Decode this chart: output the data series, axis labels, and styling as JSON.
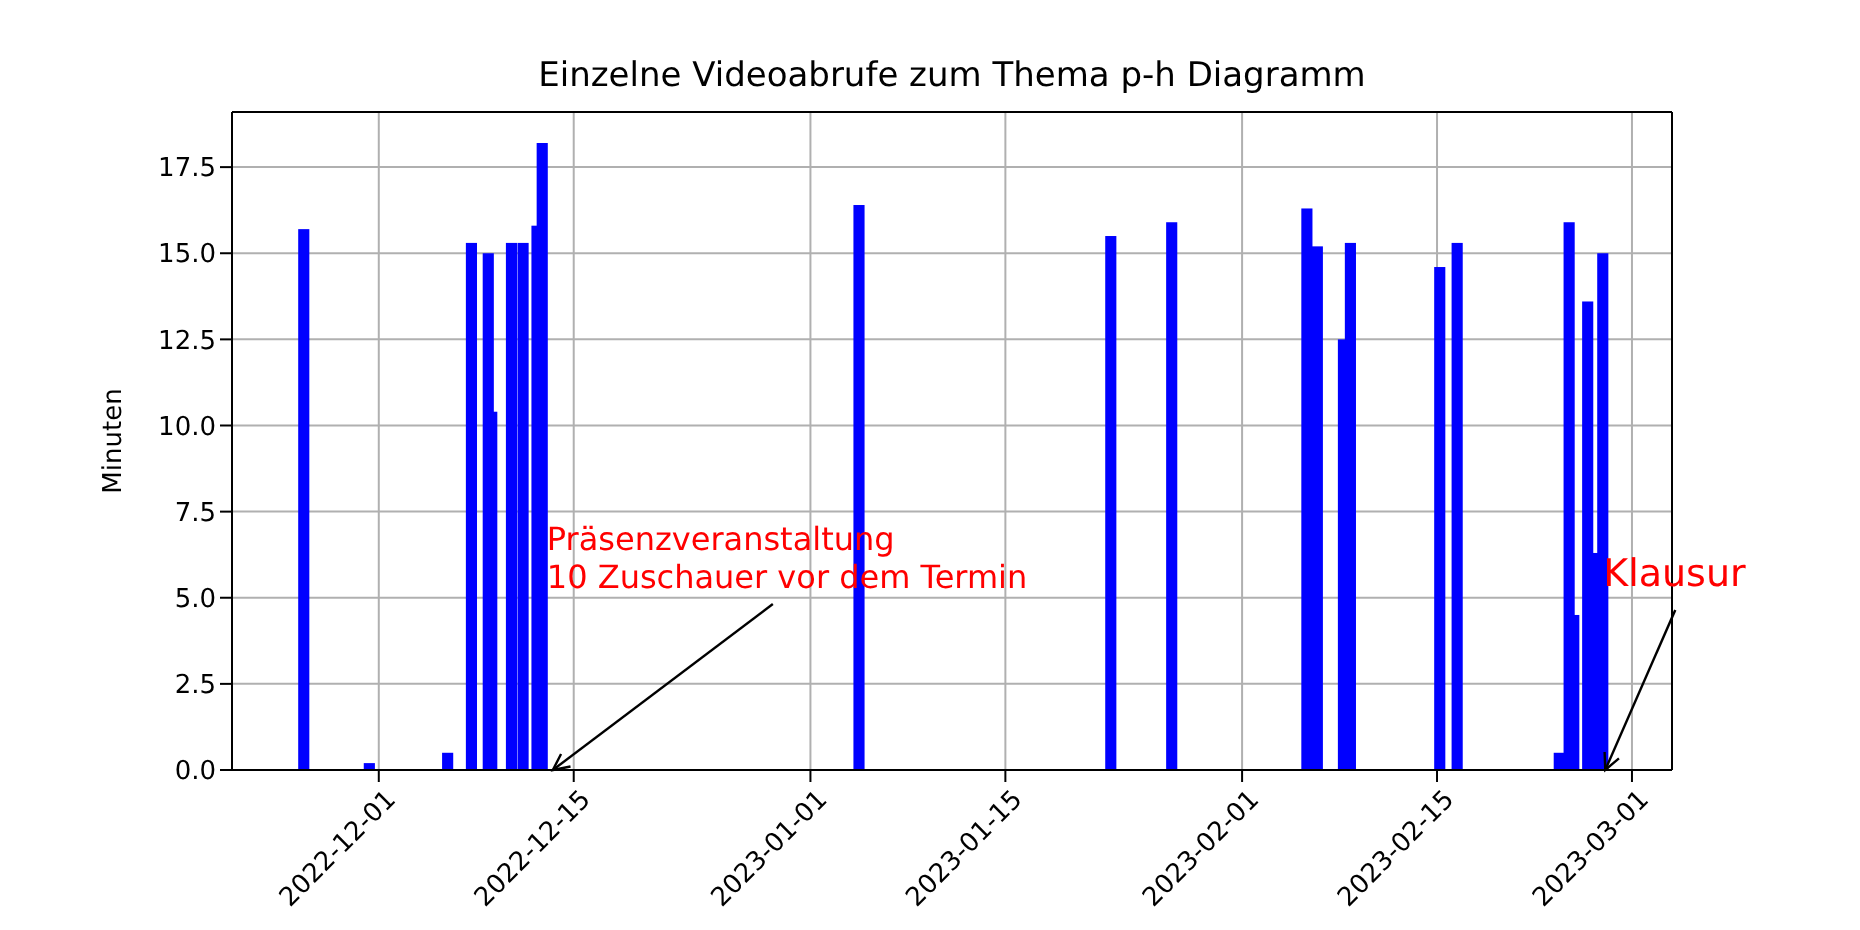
{
  "chart_data": {
    "type": "bar",
    "title": "Einzelne Videoabrufe zum Thema p-h Diagramm",
    "ylabel": "Minuten",
    "x": [
      "2022-11-25T15:00",
      "2022-11-30T08:00",
      "2022-12-05T23:00",
      "2022-12-07T16:00",
      "2022-12-08T21:00",
      "2022-12-09T03:00",
      "2022-12-10T13:00",
      "2022-12-11T09:00",
      "2022-12-12T09:00",
      "2022-12-12T18:00",
      "2023-01-04T12:00",
      "2023-01-22T14:00",
      "2023-01-26T23:00",
      "2023-02-05T16:00",
      "2023-02-06T10:00",
      "2023-02-08T07:00",
      "2023-02-08T19:00",
      "2023-02-15T05:00",
      "2023-02-16T11:00",
      "2023-02-23T19:00",
      "2023-02-24T12:00",
      "2023-02-24T20:00",
      "2023-02-25T20:00",
      "2023-02-26T07:00",
      "2023-02-26T22:00"
    ],
    "values": [
      15.7,
      0.2,
      0.5,
      15.3,
      15.0,
      10.4,
      15.3,
      15.3,
      15.8,
      18.2,
      16.4,
      15.5,
      15.9,
      16.3,
      15.2,
      12.5,
      15.3,
      14.6,
      15.3,
      0.5,
      15.9,
      4.5,
      13.6,
      6.3,
      15.0
    ],
    "color": "#0000ff",
    "xlim": [
      "2022-11-20T11:00",
      "2023-03-03T21:00"
    ],
    "xticks": [
      "2022-12-01",
      "2022-12-15",
      "2023-01-01",
      "2023-01-15",
      "2023-02-01",
      "2023-02-15",
      "2023-03-01"
    ],
    "ylim": [
      0,
      19.1
    ],
    "yticks": [
      {
        "value": 0,
        "label": "0.0"
      },
      2.5,
      {
        "value": 5,
        "label": "5.0"
      },
      7.5,
      {
        "value": 10,
        "label": "10.0"
      },
      12.5,
      {
        "value": 15,
        "label": "15.0"
      },
      17.5
    ],
    "grid": true,
    "annotations": [
      {
        "text": "Präsenzveranstaltung\n10 Zuschauer vor dem Termin",
        "x": "2022-12-13T12:00",
        "y": 0
      },
      {
        "text": "Klausur",
        "x": "2023-02-27T02:00",
        "y": 0
      }
    ]
  }
}
